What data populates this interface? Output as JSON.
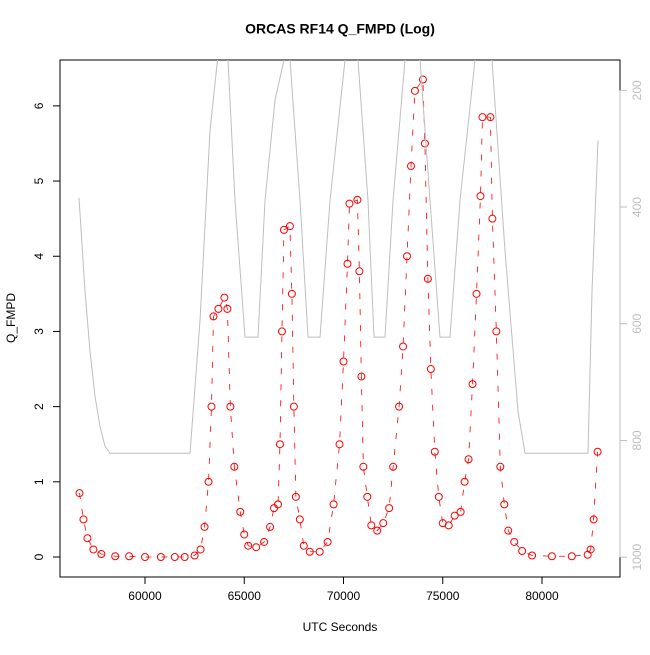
{
  "chart_data": {
    "type": "scatter",
    "title": "ORCAS RF14 Q_FMPD (Log)",
    "x_label": "UTC Seconds",
    "y_label": "Q_FMPD",
    "xlim": [
      55718,
      83929
    ],
    "xticks": [
      60000,
      65000,
      70000,
      75000,
      80000
    ],
    "ylim": [
      -0.266,
      6.61
    ],
    "yticks": [
      0,
      1,
      2,
      3,
      4,
      5,
      6
    ],
    "y2lim": [
      1034,
      148
    ],
    "y2ticks": [
      200,
      400,
      600,
      800,
      1000
    ],
    "series": [
      {
        "color": "#ff0000",
        "x": [
          56700,
          56900,
          57100,
          57400,
          57800,
          58500,
          59200,
          60000,
          60800,
          61500,
          62000,
          62500,
          62800,
          63000,
          63200,
          63350,
          63450,
          63700,
          64000,
          64150,
          64300,
          64500,
          64800,
          65000,
          65200,
          65600,
          66000,
          66300,
          66500,
          66700,
          66800,
          66900,
          67000,
          67300,
          67400,
          67500,
          67600,
          67800,
          68000,
          68300,
          68800,
          69200,
          69500,
          69800,
          70000,
          70200,
          70300,
          70700,
          70800,
          70900,
          71000,
          71200,
          71400,
          71700,
          72000,
          72300,
          72500,
          72800,
          73000,
          73200,
          73400,
          73600,
          74000,
          74100,
          74250,
          74400,
          74600,
          74800,
          75000,
          75300,
          75600,
          75900,
          76100,
          76300,
          76500,
          76700,
          76900,
          77000,
          77400,
          77500,
          77700,
          77900,
          78100,
          78300,
          78600,
          79000,
          79500,
          80500,
          81500,
          82300,
          82450,
          82600,
          82800
        ],
        "values": [
          0.85,
          0.5,
          0.25,
          0.1,
          0.04,
          0.01,
          0.01,
          0,
          0,
          0,
          0,
          0.02,
          0.1,
          0.4,
          1.0,
          2.0,
          3.2,
          3.3,
          3.45,
          3.3,
          2.0,
          1.2,
          0.6,
          0.3,
          0.15,
          0.13,
          0.2,
          0.4,
          0.65,
          0.7,
          1.5,
          3.0,
          4.35,
          4.4,
          3.5,
          2.0,
          0.8,
          0.5,
          0.15,
          0.07,
          0.07,
          0.2,
          0.7,
          1.5,
          2.6,
          3.9,
          4.7,
          4.75,
          3.8,
          2.4,
          1.2,
          0.8,
          0.42,
          0.35,
          0.45,
          0.65,
          1.2,
          2.0,
          2.8,
          4.0,
          5.2,
          6.2,
          6.35,
          5.5,
          3.7,
          2.5,
          1.4,
          0.8,
          0.45,
          0.42,
          0.55,
          0.6,
          1.0,
          1.3,
          2.3,
          3.5,
          4.8,
          5.85,
          5.85,
          4.5,
          3.0,
          1.2,
          0.7,
          0.35,
          0.2,
          0.08,
          0.02,
          0.01,
          0.01,
          0.03,
          0.1,
          0.5,
          1.4
        ]
      },
      {
        "color": "#bebebe",
        "axis": "y2",
        "x": [
          56675,
          56977,
          57229,
          57481,
          57733,
          57985,
          58237,
          62267,
          62771,
          63275,
          63678,
          64181,
          64534,
          65038,
          65693,
          66045,
          66549,
          67053,
          67305,
          67809,
          68212,
          68816,
          69320,
          70076,
          70327,
          70730,
          71234,
          71537,
          72091,
          72494,
          73098,
          73350,
          73854,
          74358,
          74861,
          75365,
          75869,
          76625,
          76877,
          77481,
          78136,
          78791,
          79144,
          82317,
          82519,
          82821
        ],
        "values": [
          384,
          544,
          647,
          724,
          776,
          810,
          822,
          822,
          595,
          269,
          140,
          148,
          389,
          623,
          623,
          389,
          217,
          140,
          148,
          389,
          623,
          623,
          389,
          148,
          140,
          148,
          389,
          623,
          623,
          389,
          148,
          140,
          148,
          389,
          623,
          623,
          389,
          148,
          140,
          148,
          475,
          750,
          822,
          822,
          544,
          286
        ]
      }
    ]
  }
}
